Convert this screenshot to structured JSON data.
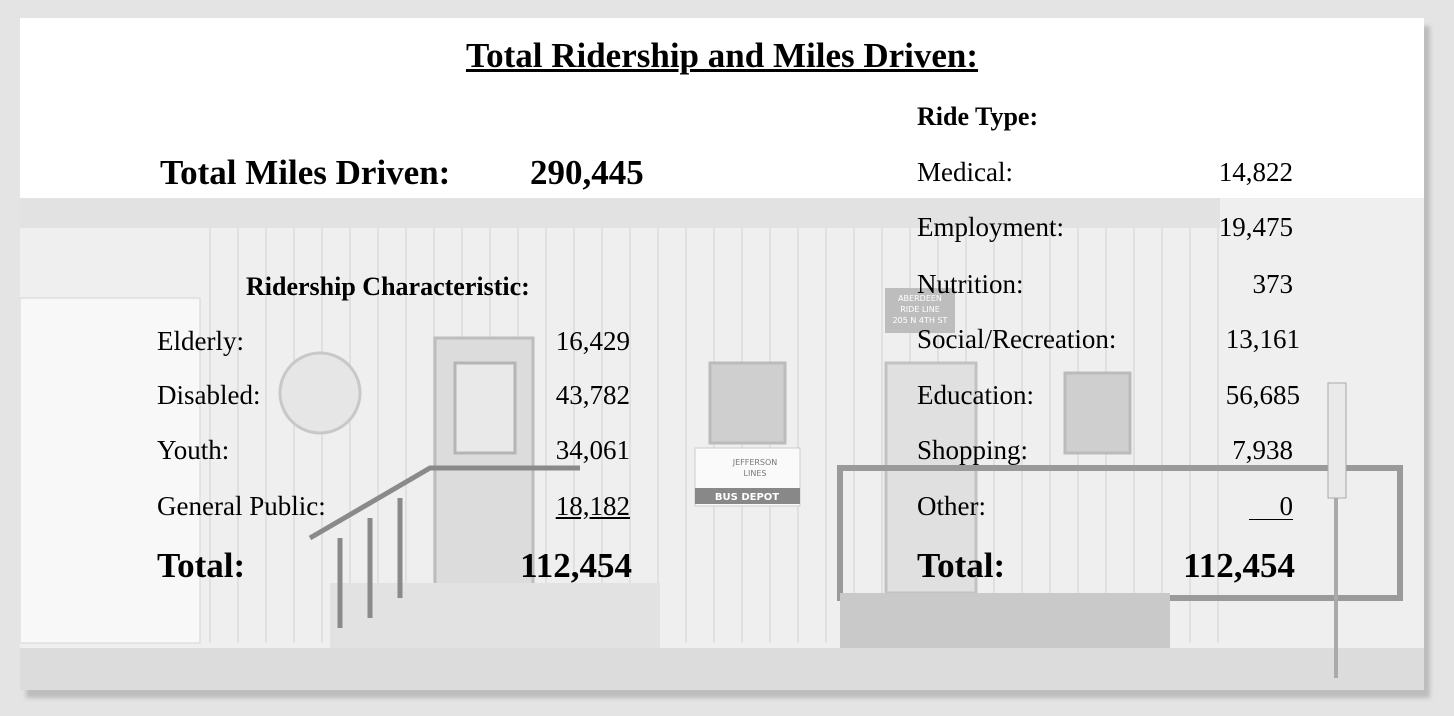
{
  "title": "Total Ridership and Miles Driven:",
  "miles": {
    "label": "Total Miles Driven:",
    "value": "290,445"
  },
  "ridership": {
    "heading": "Ridership Characteristic:",
    "rows": [
      [
        "Elderly:",
        "16,429"
      ],
      [
        "Disabled:",
        "43,782"
      ],
      [
        "Youth:",
        "34,061"
      ],
      [
        "General Public:",
        "18,182"
      ]
    ],
    "total": [
      "Total:",
      "112,454"
    ]
  },
  "ride_type": {
    "heading": "Ride Type:",
    "rows": [
      [
        "Medical:",
        "14,822"
      ],
      [
        "Employment:",
        "19,475"
      ],
      [
        "Nutrition:",
        "373"
      ],
      [
        "Social/Recreation:",
        "13,161"
      ],
      [
        "Education:",
        "56,685"
      ],
      [
        "Shopping:",
        "7,938"
      ],
      [
        "Other:",
        "0"
      ]
    ],
    "total": [
      "Total:",
      "112,454"
    ]
  },
  "photo_signs": {
    "depot_sign": [
      "ABERDEEN",
      "RIDE LINE",
      "205 N 4TH ST"
    ],
    "bus_sign": [
      "JEFFERSON",
      "LINES",
      "BUS DEPOT"
    ]
  }
}
